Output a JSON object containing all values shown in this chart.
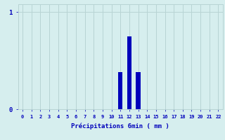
{
  "categories": [
    0,
    1,
    2,
    3,
    4,
    5,
    6,
    7,
    8,
    9,
    10,
    11,
    12,
    13,
    14,
    15,
    16,
    17,
    18,
    19,
    20,
    21,
    22
  ],
  "values": [
    0,
    0,
    0,
    0,
    0,
    0,
    0,
    0,
    0,
    0,
    0,
    0.38,
    0.75,
    0.38,
    0,
    0,
    0,
    0,
    0,
    0,
    0,
    0,
    0
  ],
  "bar_color": "#0000bb",
  "background_color": "#d6eeee",
  "grid_color": "#b8d4d4",
  "xlabel": "Précipitations 6min ( mm )",
  "xlabel_color": "#0000bb",
  "tick_color": "#0000bb",
  "ylim": [
    0,
    1.08
  ],
  "yticks": [
    0,
    1
  ],
  "xlim": [
    -0.5,
    22.5
  ],
  "bar_width": 0.5
}
